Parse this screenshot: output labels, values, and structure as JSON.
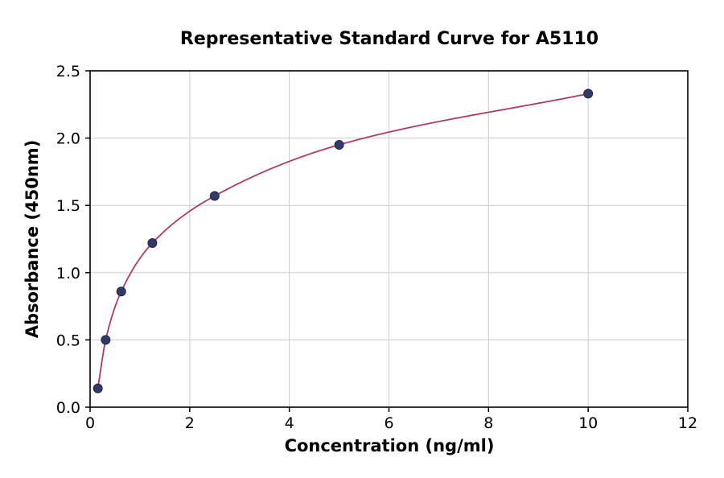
{
  "figure": {
    "title": "Representative Standard Curve for A5110",
    "xlabel": "Concentration (ng/ml)",
    "ylabel": "Absorbance (450nm)"
  },
  "chart_data": {
    "type": "scatter",
    "title": "Representative Standard Curve for A5110",
    "xlabel": "Concentration (ng/ml)",
    "ylabel": "Absorbance (450nm)",
    "xlim": [
      0,
      12
    ],
    "ylim": [
      0,
      2.5
    ],
    "x_ticks": [
      0,
      2,
      4,
      6,
      8,
      10,
      12
    ],
    "x_tick_labels": [
      "0",
      "2",
      "4",
      "6",
      "8",
      "10",
      "12"
    ],
    "y_ticks": [
      0.0,
      0.5,
      1.0,
      1.5,
      2.0,
      2.5
    ],
    "y_tick_labels": [
      "0.0",
      "0.5",
      "1.0",
      "1.5",
      "2.0",
      "2.5"
    ],
    "grid": true,
    "legend": "none",
    "points": [
      {
        "x": 0.156,
        "y": 0.14
      },
      {
        "x": 0.3125,
        "y": 0.5
      },
      {
        "x": 0.625,
        "y": 0.86
      },
      {
        "x": 1.25,
        "y": 1.22
      },
      {
        "x": 2.5,
        "y": 1.57
      },
      {
        "x": 5.0,
        "y": 1.95
      },
      {
        "x": 10.0,
        "y": 2.33
      }
    ],
    "series": [
      {
        "name": "fitted standard curve",
        "type": "smooth-line"
      },
      {
        "name": "standard data points",
        "type": "scatter"
      }
    ],
    "colors": {
      "curve": "#b13a5e",
      "point_fill": "#333a66",
      "point_edge": "#1f2750",
      "grid": "#cccccc",
      "axis": "#000000",
      "background": "#ffffff"
    }
  }
}
